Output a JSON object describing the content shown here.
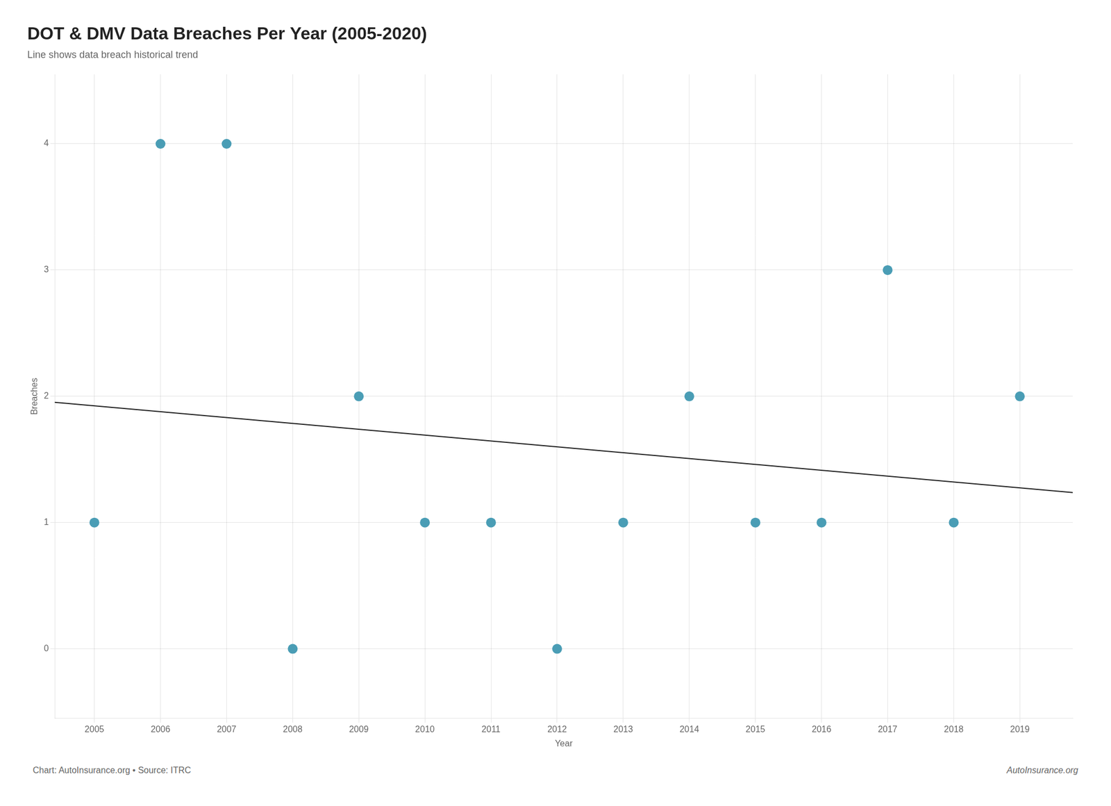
{
  "chart_data": {
    "type": "scatter",
    "title": "DOT & DMV Data Breaches Per Year (2005-2020)",
    "subtitle": "Line shows data breach historical trend",
    "x_label": "Year",
    "y_label": "Breaches",
    "footer": "Chart: AutoInsurance.org • Source: ITRC",
    "credit": "AutoInsurance.org",
    "series": [
      {
        "type": "scatter",
        "color": "#4a9db5",
        "x": [
          2005,
          2006,
          2007,
          2008,
          2009,
          2010,
          2011,
          2012,
          2013,
          2014,
          2015,
          2016,
          2017,
          2018,
          2019
        ],
        "values": [
          1,
          4,
          4,
          0,
          2,
          1,
          1,
          0,
          1,
          2,
          1,
          1,
          3,
          1,
          2
        ]
      },
      {
        "type": "line",
        "color": "#222222",
        "x": [
          2004.4,
          2019.8
        ],
        "values": [
          1.952857142857,
          1.237857142857
        ]
      }
    ],
    "xlim": [
      2004.4,
      2019.8
    ],
    "ylim": [
      -0.55,
      4.55
    ],
    "xticks": [
      2005,
      2006,
      2007,
      2008,
      2009,
      2010,
      2011,
      2012,
      2013,
      2014,
      2015,
      2016,
      2017,
      2018,
      2019
    ],
    "yticks": [
      0,
      1,
      2,
      3,
      4
    ],
    "grid": true
  }
}
